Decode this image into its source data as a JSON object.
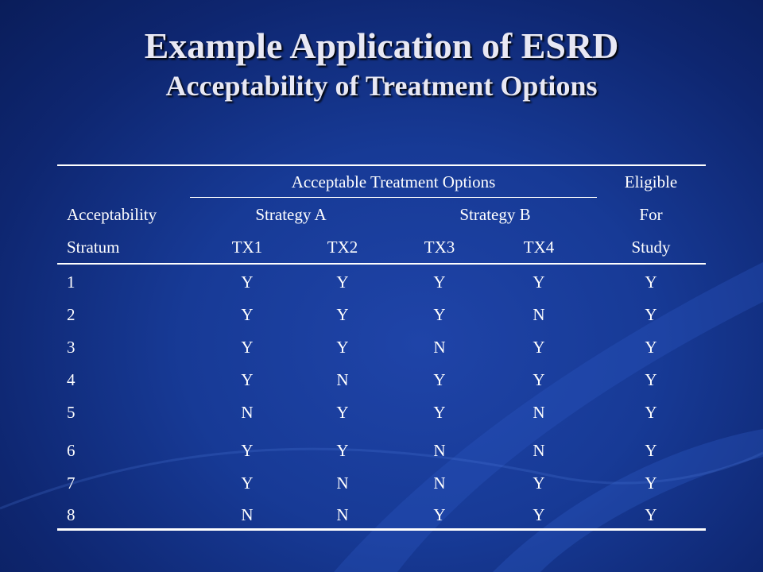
{
  "slide": {
    "title": "Example Application of ESRD",
    "subtitle": "Acceptability of Treatment Options"
  },
  "table": {
    "header": {
      "group_label": "Acceptable Treatment Options",
      "eligible_1": "Eligible",
      "eligible_2": "For",
      "eligible_3": "Study",
      "stratum_1": "Acceptability",
      "stratum_2": "Stratum",
      "strategy_a": "Strategy A",
      "strategy_b": "Strategy B",
      "tx1": "TX1",
      "tx2": "TX2",
      "tx3": "TX3",
      "tx4": "TX4"
    },
    "rows": [
      {
        "stratum": "1",
        "tx1": "Y",
        "tx2": "Y",
        "tx3": "Y",
        "tx4": "Y",
        "eligible": "Y"
      },
      {
        "stratum": "2",
        "tx1": "Y",
        "tx2": "Y",
        "tx3": "Y",
        "tx4": "N",
        "eligible": "Y"
      },
      {
        "stratum": "3",
        "tx1": "Y",
        "tx2": "Y",
        "tx3": "N",
        "tx4": "Y",
        "eligible": "Y"
      },
      {
        "stratum": "4",
        "tx1": "Y",
        "tx2": "N",
        "tx3": "Y",
        "tx4": "Y",
        "eligible": "Y"
      },
      {
        "stratum": "5",
        "tx1": "N",
        "tx2": "Y",
        "tx3": "Y",
        "tx4": "N",
        "eligible": "Y"
      },
      {
        "stratum": "6",
        "tx1": "Y",
        "tx2": "Y",
        "tx3": "N",
        "tx4": "N",
        "eligible": "Y"
      },
      {
        "stratum": "7",
        "tx1": "Y",
        "tx2": "N",
        "tx3": "N",
        "tx4": "Y",
        "eligible": "Y"
      },
      {
        "stratum": "8",
        "tx1": "N",
        "tx2": "N",
        "tx3": "Y",
        "tx4": "Y",
        "eligible": "Y"
      }
    ]
  }
}
